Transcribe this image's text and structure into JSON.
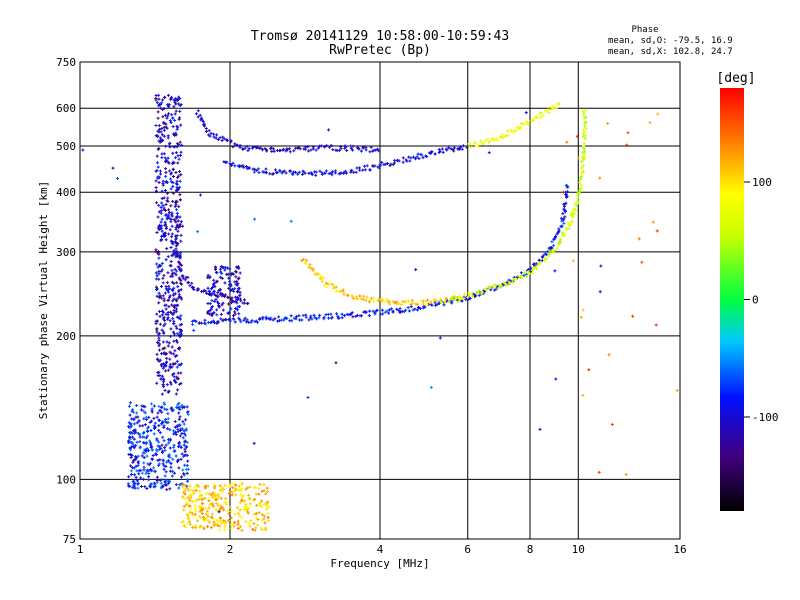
{
  "chart_data": {
    "type": "scatter",
    "title": "Tromsø 20141129 10:58:00-10:59:43",
    "subtitle": "RwPretec (Bp)",
    "xlabel": "Frequency [MHz]",
    "ylabel": "Stationary phase Virtual Height [km]",
    "x_scale": "log",
    "y_scale": "log",
    "xlim": [
      1,
      16
    ],
    "ylim": [
      75,
      750
    ],
    "x_ticks": [
      "1",
      "2",
      "4",
      "6",
      "8",
      "10",
      "16"
    ],
    "x_tick_values": [
      1,
      2,
      4,
      6,
      8,
      10,
      16
    ],
    "y_ticks": [
      "75",
      "100",
      "200",
      "300",
      "400",
      "500",
      "600",
      "750"
    ],
    "y_tick_values": [
      75,
      100,
      200,
      300,
      400,
      500,
      600,
      750
    ],
    "grid": true,
    "phase_info": {
      "heading": "Phase",
      "o_line": "mean, sd,O: -79.5, 16.9",
      "x_line": "mean, sd,X: 102.8, 24.7"
    },
    "colorbar": {
      "label": "[deg]",
      "range": [
        -180,
        180
      ],
      "ticks": [
        "100",
        "0",
        "-100"
      ],
      "tick_values": [
        100,
        0,
        -100
      ]
    },
    "traces": [
      {
        "kind": "vertical-spread",
        "phase": -110,
        "x_range": [
          1.42,
          1.6
        ],
        "y_range": [
          150,
          640
        ]
      },
      {
        "kind": "curve",
        "phase": -115,
        "points": [
          [
            1.55,
            320
          ],
          [
            1.6,
            270
          ],
          [
            1.7,
            250
          ],
          [
            1.85,
            245
          ],
          [
            2.0,
            240
          ],
          [
            2.2,
            235
          ]
        ]
      },
      {
        "kind": "curve",
        "phase": -95,
        "points": [
          [
            1.68,
            213
          ],
          [
            2.0,
            215
          ],
          [
            2.5,
            217
          ],
          [
            3.0,
            219
          ],
          [
            3.5,
            221
          ],
          [
            4.0,
            224
          ],
          [
            4.6,
            228
          ],
          [
            5.2,
            233
          ],
          [
            6.0,
            241
          ],
          [
            7.0,
            255
          ],
          [
            8.0,
            275
          ],
          [
            8.8,
            305
          ],
          [
            9.3,
            345
          ],
          [
            9.5,
            420
          ]
        ]
      },
      {
        "kind": "curve",
        "phase": 110,
        "points": [
          [
            2.8,
            290
          ],
          [
            3.1,
            258
          ],
          [
            3.4,
            245
          ],
          [
            3.8,
            238
          ],
          [
            4.3,
            235
          ],
          [
            5.0,
            235
          ],
          [
            5.8,
            239
          ]
        ]
      },
      {
        "kind": "curve",
        "phase": 60,
        "points": [
          [
            5.5,
            238
          ],
          [
            6.3,
            246
          ],
          [
            7.2,
            258
          ],
          [
            8.2,
            276
          ],
          [
            9.0,
            305
          ],
          [
            9.6,
            340
          ],
          [
            10.0,
            390
          ],
          [
            10.2,
            450
          ],
          [
            10.3,
            520
          ],
          [
            10.3,
            600
          ]
        ]
      },
      {
        "kind": "curve",
        "phase": -110,
        "points": [
          [
            1.72,
            590
          ],
          [
            1.82,
            530
          ],
          [
            2.1,
            495
          ],
          [
            2.6,
            490
          ],
          [
            3.0,
            495
          ],
          [
            3.4,
            495
          ],
          [
            4.0,
            490
          ]
        ]
      },
      {
        "kind": "curve",
        "phase": -100,
        "points": [
          [
            1.95,
            465
          ],
          [
            2.2,
            445
          ],
          [
            2.6,
            438
          ],
          [
            3.0,
            438
          ],
          [
            3.5,
            443
          ],
          [
            4.0,
            455
          ],
          [
            4.6,
            470
          ],
          [
            5.3,
            487
          ],
          [
            6.0,
            500
          ]
        ]
      },
      {
        "kind": "curve",
        "phase": 80,
        "points": [
          [
            6.0,
            500
          ],
          [
            6.8,
            515
          ],
          [
            7.6,
            545
          ],
          [
            8.5,
            585
          ],
          [
            9.2,
            610
          ]
        ]
      },
      {
        "kind": "vertical-spread",
        "phase": -90,
        "x_range": [
          1.25,
          1.65
        ],
        "y_range": [
          95,
          145
        ]
      },
      {
        "kind": "vertical-spread",
        "phase": -110,
        "x_range": [
          1.8,
          2.1
        ],
        "y_range": [
          220,
          280
        ]
      },
      {
        "kind": "vertical-spread",
        "phase": 110,
        "x_range": [
          1.6,
          2.4
        ],
        "y_range": [
          78,
          98
        ]
      },
      {
        "kind": "scatter-cloud",
        "phase": -100,
        "x_range": [
          1.0,
          15.0
        ],
        "y_range": [
          85,
          650
        ]
      },
      {
        "kind": "scatter-cloud",
        "phase": 140,
        "x_range": [
          9.0,
          16.0
        ],
        "y_range": [
          100,
          620
        ]
      }
    ],
    "colors": {
      "grid": "#000000",
      "background": "#ffffff"
    }
  }
}
